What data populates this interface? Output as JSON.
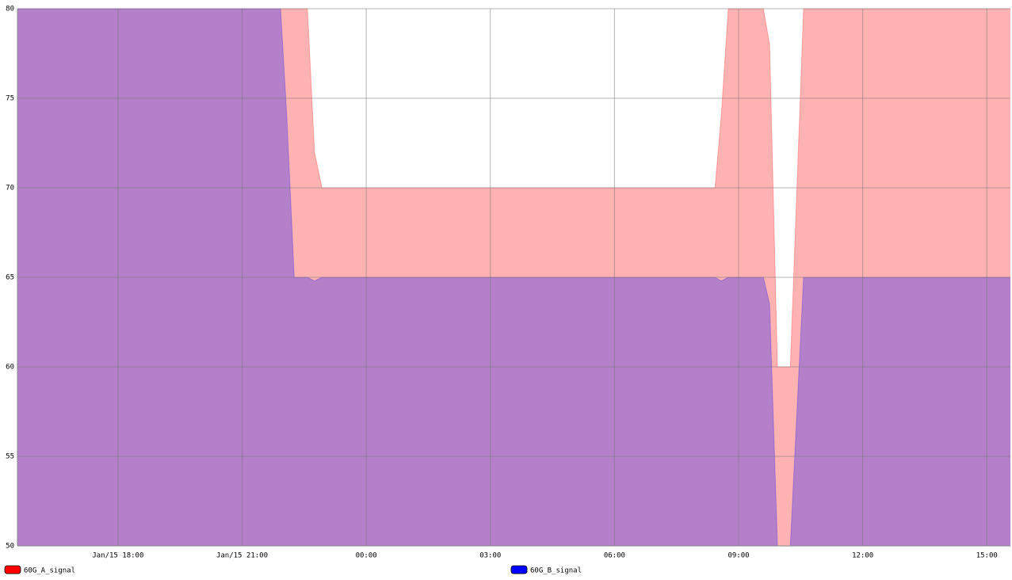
{
  "chart_data": {
    "type": "area",
    "x": [
      15.57,
      21.93,
      22.08,
      22.26,
      22.58,
      22.75,
      22.93,
      32.43,
      32.58,
      32.75,
      33.6,
      33.75,
      33.94,
      34.25,
      34.57,
      39.57
    ],
    "series": [
      {
        "name": "60G_A_signal",
        "color": "#ff0000",
        "fill_color": "#ffb2b2",
        "values": [
          80,
          80,
          80,
          80,
          80,
          72,
          70,
          70,
          74,
          80,
          80,
          78,
          60,
          60,
          80,
          80
        ]
      },
      {
        "name": "60G_B_signal",
        "color": "#0000ff",
        "fill_color": "#b380c9",
        "values": [
          80,
          80,
          74,
          65,
          65,
          64.8,
          65,
          65,
          64.8,
          65,
          65,
          63.5,
          50,
          50,
          65,
          65
        ]
      }
    ],
    "xlim": [
      15.57,
      39.57
    ],
    "xticks": [
      {
        "value": 18,
        "label": "Jan/15 18:00"
      },
      {
        "value": 21,
        "label": "Jan/15 21:00"
      },
      {
        "value": 24,
        "label": "00:00"
      },
      {
        "value": 27,
        "label": "03:00"
      },
      {
        "value": 30,
        "label": "06:00"
      },
      {
        "value": 33,
        "label": "09:00"
      },
      {
        "value": 36,
        "label": "12:00"
      },
      {
        "value": 39,
        "label": "15:00"
      }
    ],
    "ylim": [
      50,
      80
    ],
    "yticks": [
      50,
      55,
      60,
      65,
      70,
      75,
      80
    ],
    "grid": true
  }
}
